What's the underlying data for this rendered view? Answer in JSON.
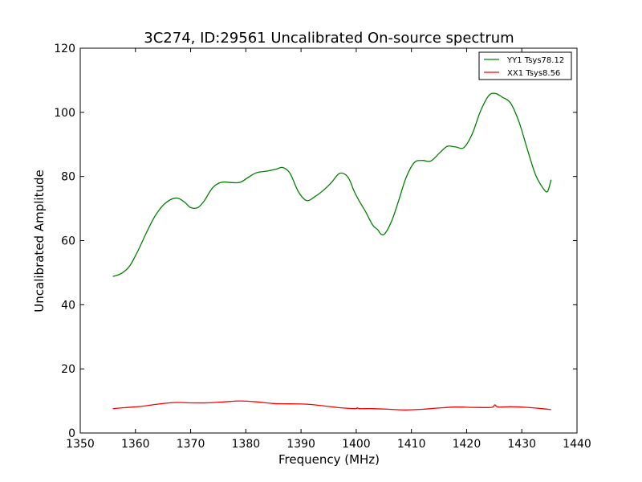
{
  "chart_data": {
    "type": "line",
    "title": "3C274, ID:29561 Uncalibrated On-source spectrum",
    "xlabel": "Frequency (MHz)",
    "ylabel": "Uncalibrated Amplitude",
    "xlim": [
      1350,
      1440
    ],
    "ylim": [
      0,
      120
    ],
    "xticks": [
      1350,
      1360,
      1370,
      1380,
      1390,
      1400,
      1410,
      1420,
      1430,
      1440
    ],
    "yticks": [
      0,
      20,
      40,
      60,
      80,
      100,
      120
    ],
    "grid": false,
    "legend_position": "top-right",
    "series": [
      {
        "name": "YY1 Tsys78.12",
        "color": "#008000",
        "points": [
          [
            1355.9,
            48.8
          ],
          [
            1357.5,
            49.8
          ],
          [
            1359.0,
            52.2
          ],
          [
            1360.5,
            57.0
          ],
          [
            1362.0,
            62.5
          ],
          [
            1363.5,
            67.5
          ],
          [
            1365.0,
            71.0
          ],
          [
            1366.5,
            72.9
          ],
          [
            1367.7,
            73.2
          ],
          [
            1368.9,
            72.0
          ],
          [
            1370.0,
            70.3
          ],
          [
            1371.3,
            70.3
          ],
          [
            1372.5,
            72.5
          ],
          [
            1374.0,
            76.5
          ],
          [
            1375.6,
            78.2
          ],
          [
            1377.5,
            78.1
          ],
          [
            1379.0,
            78.2
          ],
          [
            1380.5,
            79.8
          ],
          [
            1382.0,
            81.2
          ],
          [
            1384.0,
            81.7
          ],
          [
            1385.5,
            82.3
          ],
          [
            1386.7,
            82.8
          ],
          [
            1388.0,
            81.0
          ],
          [
            1389.5,
            75.3
          ],
          [
            1391.0,
            72.5
          ],
          [
            1392.5,
            73.7
          ],
          [
            1394.0,
            75.6
          ],
          [
            1395.5,
            78.1
          ],
          [
            1397.0,
            81.0
          ],
          [
            1398.5,
            79.8
          ],
          [
            1399.6,
            75.5
          ],
          [
            1400.5,
            72.5
          ],
          [
            1401.7,
            69.0
          ],
          [
            1403.0,
            64.8
          ],
          [
            1403.9,
            63.4
          ],
          [
            1404.5,
            62.0
          ],
          [
            1405.2,
            62.2
          ],
          [
            1406.4,
            66.0
          ],
          [
            1407.7,
            72.5
          ],
          [
            1409.0,
            79.5
          ],
          [
            1410.5,
            84.3
          ],
          [
            1412.0,
            85.0
          ],
          [
            1413.5,
            84.8
          ],
          [
            1415.2,
            87.5
          ],
          [
            1416.5,
            89.4
          ],
          [
            1418.0,
            89.2
          ],
          [
            1419.5,
            89.0
          ],
          [
            1421.0,
            93.2
          ],
          [
            1422.5,
            100.3
          ],
          [
            1424.0,
            105.2
          ],
          [
            1425.2,
            105.9
          ],
          [
            1426.5,
            104.7
          ],
          [
            1428.0,
            102.8
          ],
          [
            1429.5,
            97.0
          ],
          [
            1431.0,
            88.5
          ],
          [
            1432.5,
            80.5
          ],
          [
            1434.0,
            76.0
          ],
          [
            1434.7,
            75.4
          ],
          [
            1435.3,
            79.0
          ]
        ]
      },
      {
        "name": "XX1 Tsys8.56",
        "color": "#ff0000",
        "points": [
          [
            1355.9,
            7.6
          ],
          [
            1358.0,
            7.9
          ],
          [
            1361.0,
            8.3
          ],
          [
            1364.0,
            9.0
          ],
          [
            1367.0,
            9.5
          ],
          [
            1370.0,
            9.4
          ],
          [
            1373.0,
            9.4
          ],
          [
            1376.0,
            9.7
          ],
          [
            1379.0,
            10.0
          ],
          [
            1382.0,
            9.7
          ],
          [
            1385.0,
            9.2
          ],
          [
            1388.0,
            9.1
          ],
          [
            1391.0,
            9.0
          ],
          [
            1394.0,
            8.5
          ],
          [
            1397.0,
            7.9
          ],
          [
            1399.8,
            7.6
          ],
          [
            1400.2,
            7.9
          ],
          [
            1400.6,
            7.6
          ],
          [
            1403.0,
            7.6
          ],
          [
            1406.0,
            7.4
          ],
          [
            1409.0,
            7.2
          ],
          [
            1412.0,
            7.4
          ],
          [
            1415.0,
            7.8
          ],
          [
            1418.0,
            8.1
          ],
          [
            1421.0,
            8.0
          ],
          [
            1424.5,
            8.0
          ],
          [
            1425.1,
            8.8
          ],
          [
            1425.7,
            8.1
          ],
          [
            1428.0,
            8.2
          ],
          [
            1431.0,
            8.0
          ],
          [
            1433.0,
            7.7
          ],
          [
            1435.3,
            7.3
          ]
        ]
      }
    ]
  }
}
